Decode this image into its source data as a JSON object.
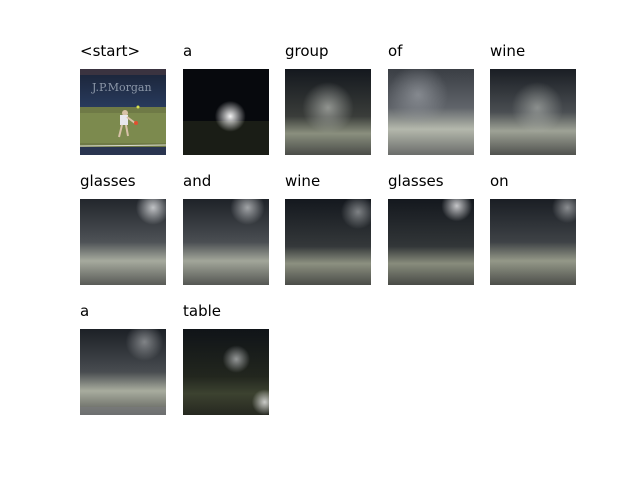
{
  "figure": {
    "words": [
      "<start>",
      "a",
      "group",
      "of",
      "wine",
      "glasses",
      "and",
      "wine",
      "glasses",
      "on",
      "a",
      "table"
    ],
    "image_watermark_text": "J.P.Morgan"
  }
}
